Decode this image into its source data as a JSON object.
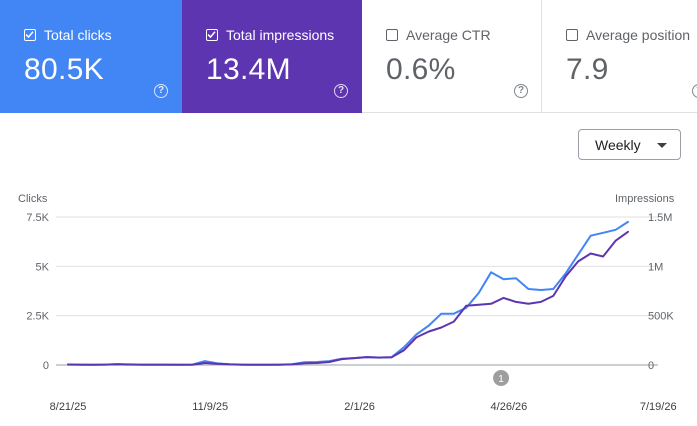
{
  "metrics": [
    {
      "id": "clicks",
      "label": "Total clicks",
      "value": "80.5K",
      "checked": true,
      "color": "#4285f4"
    },
    {
      "id": "impressions",
      "label": "Total impressions",
      "value": "13.4M",
      "checked": true,
      "color": "#5e35b1"
    },
    {
      "id": "ctr",
      "label": "Average CTR",
      "value": "0.6%",
      "checked": false
    },
    {
      "id": "position",
      "label": "Average position",
      "value": "7.9",
      "checked": false
    }
  ],
  "help_glyph": "?",
  "period_select": {
    "value": "Weekly"
  },
  "annotation_marker": "1",
  "chart_data": {
    "type": "line",
    "y_left_label": "Clicks",
    "y_right_label": "Impressions",
    "y_left_ticks": [
      "0",
      "2.5K",
      "5K",
      "7.5K"
    ],
    "y_right_ticks": [
      "0",
      "500K",
      "1M",
      "1.5M"
    ],
    "y_left_lim": [
      0,
      7500
    ],
    "y_right_lim": [
      0,
      1500000
    ],
    "x_tick_labels": [
      "8/21/25",
      "11/9/25",
      "2/1/26",
      "4/26/26",
      "7/19/26"
    ],
    "x_tick_weeks": [
      0,
      11.43,
      23.43,
      35.43,
      47.43
    ],
    "annotation_week": 34.8,
    "series": [
      {
        "name": "Total clicks",
        "axis": "left",
        "color": "#4285f4",
        "values": [
          30,
          20,
          10,
          20,
          50,
          30,
          20,
          20,
          20,
          10,
          20,
          200,
          80,
          40,
          20,
          10,
          10,
          20,
          40,
          140,
          150,
          200,
          320,
          350,
          400,
          380,
          390,
          900,
          1550,
          2000,
          2600,
          2600,
          2900,
          3650,
          4700,
          4350,
          4400,
          3850,
          3800,
          3850,
          4650,
          5600,
          6550,
          6700,
          6850,
          7250
        ]
      },
      {
        "name": "Total impressions",
        "axis": "right",
        "color": "#5e35b1",
        "values": [
          4000,
          3000,
          2000,
          4000,
          6000,
          4000,
          3000,
          3000,
          3000,
          2000,
          3000,
          20000,
          12000,
          6000,
          3000,
          2000,
          2000,
          3000,
          6000,
          18000,
          20000,
          30000,
          60000,
          70000,
          80000,
          75000,
          78000,
          150000,
          280000,
          340000,
          380000,
          440000,
          600000,
          610000,
          620000,
          680000,
          640000,
          620000,
          640000,
          700000,
          900000,
          1050000,
          1130000,
          1100000,
          1260000,
          1350000
        ]
      }
    ]
  }
}
